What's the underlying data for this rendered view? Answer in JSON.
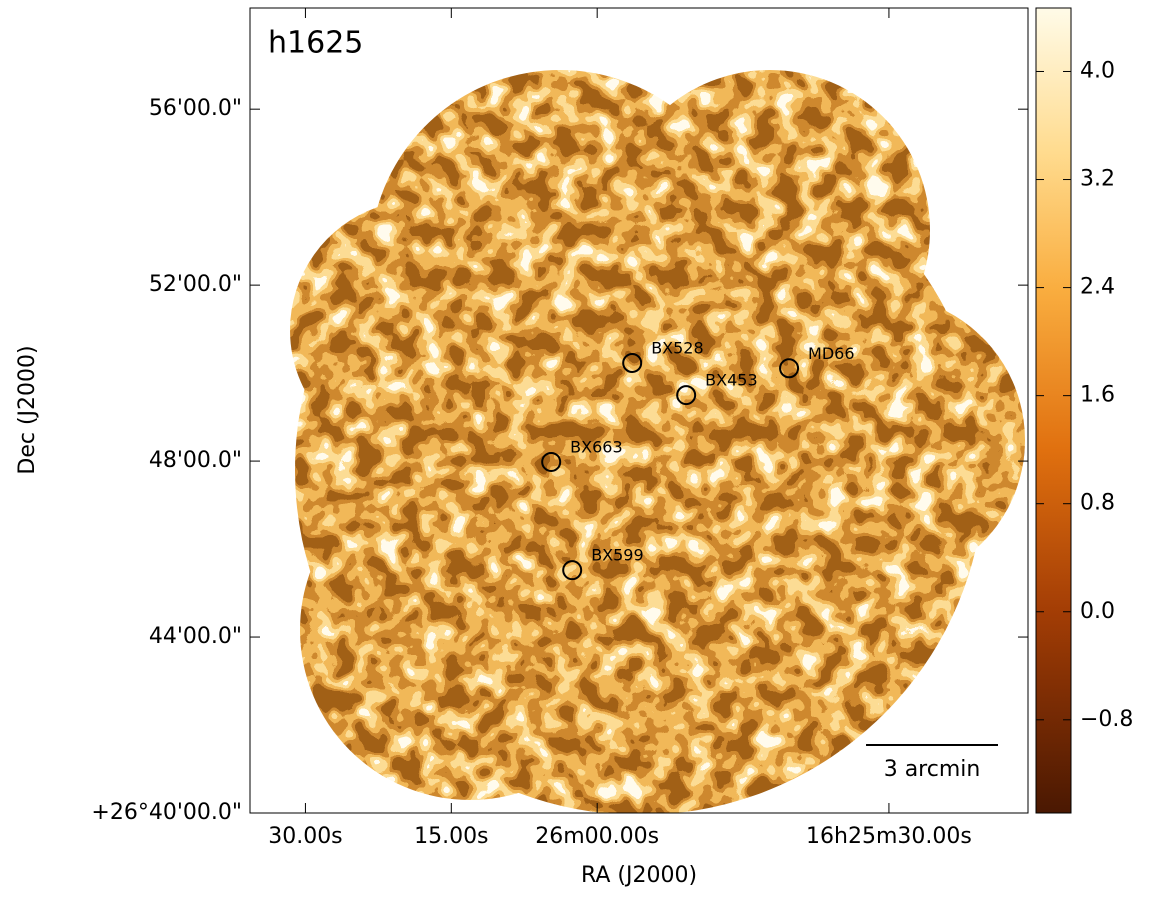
{
  "chart_data": {
    "type": "skymap",
    "title": "h1625",
    "xlabel": "RA (J2000)",
    "ylabel": "Dec (J2000)",
    "xlim": [
      95.7,
      15.7
    ],
    "xticks": [
      {
        "value": 90,
        "label": "30.00s"
      },
      {
        "value": 75,
        "label": "15.00s"
      },
      {
        "value": 60,
        "label": "26m00.00s"
      },
      {
        "value": 30,
        "label": "16h25m30.00s"
      }
    ],
    "ylim": [
      0,
      18.3
    ],
    "yticks": [
      {
        "value": 0,
        "label": "+26°40'00.0\""
      },
      {
        "value": 4,
        "label": "44'00.0\""
      },
      {
        "value": 8,
        "label": "48'00.0\""
      },
      {
        "value": 12,
        "label": "52'00.0\""
      },
      {
        "value": 16,
        "label": "56'00.0\""
      }
    ],
    "sources": [
      {
        "name": "BX528",
        "x": 56.4,
        "y": 10.23
      },
      {
        "name": "BX453",
        "x": 50.85,
        "y": 9.5
      },
      {
        "name": "MD66",
        "x": 40.27,
        "y": 10.11
      },
      {
        "name": "BX663",
        "x": 64.73,
        "y": 7.98
      },
      {
        "name": "BX599",
        "x": 62.57,
        "y": 5.52
      }
    ],
    "scalebar": {
      "length": 3,
      "label": "3 arcmin"
    },
    "colorbar": {
      "lim": [
        -1.49,
        4.47
      ],
      "ticks": [
        {
          "value": 4,
          "label": "4.0"
        },
        3.2,
        2.4,
        1.6,
        0.8,
        {
          "value": 0,
          "label": "0.0"
        },
        {
          "value": -0.8,
          "label": "−0.8"
        }
      ]
    }
  }
}
